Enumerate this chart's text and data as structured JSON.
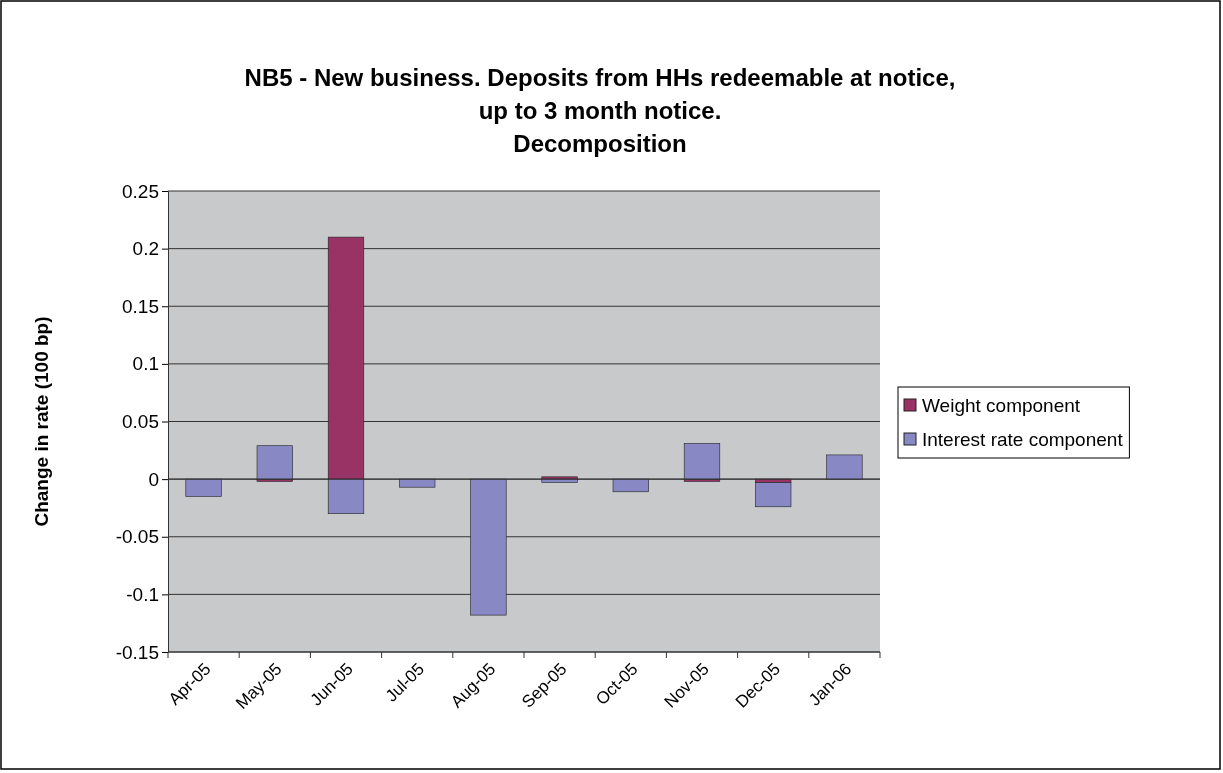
{
  "chart_data": {
    "type": "bar",
    "stacked": true,
    "title": "NB5 - New business. Deposits from HHs redeemable at notice,\nup to 3 month notice.\nDecomposition",
    "ylabel": "Change in rate (100 bp)",
    "categories": [
      "Apr-05",
      "May-05",
      "Jun-05",
      "Jul-05",
      "Aug-05",
      "Sep-05",
      "Oct-05",
      "Nov-05",
      "Dec-05",
      "Jan-06"
    ],
    "series": [
      {
        "name": "Weight component",
        "color": "#993366",
        "values": [
          0,
          -0.002,
          0.21,
          0,
          0,
          0.002,
          0,
          -0.002,
          -0.003,
          0
        ]
      },
      {
        "name": "Interest rate component",
        "color": "#8888c4",
        "values": [
          -0.015,
          0.029,
          -0.03,
          -0.007,
          -0.118,
          -0.003,
          -0.011,
          0.031,
          -0.021,
          0.021
        ]
      }
    ],
    "ylim": [
      -0.15,
      0.25
    ],
    "yticks": [
      -0.15,
      -0.1,
      -0.05,
      0,
      0.05,
      0.1,
      0.15,
      0.2,
      0.25
    ],
    "grid": "y",
    "legend": "right"
  }
}
